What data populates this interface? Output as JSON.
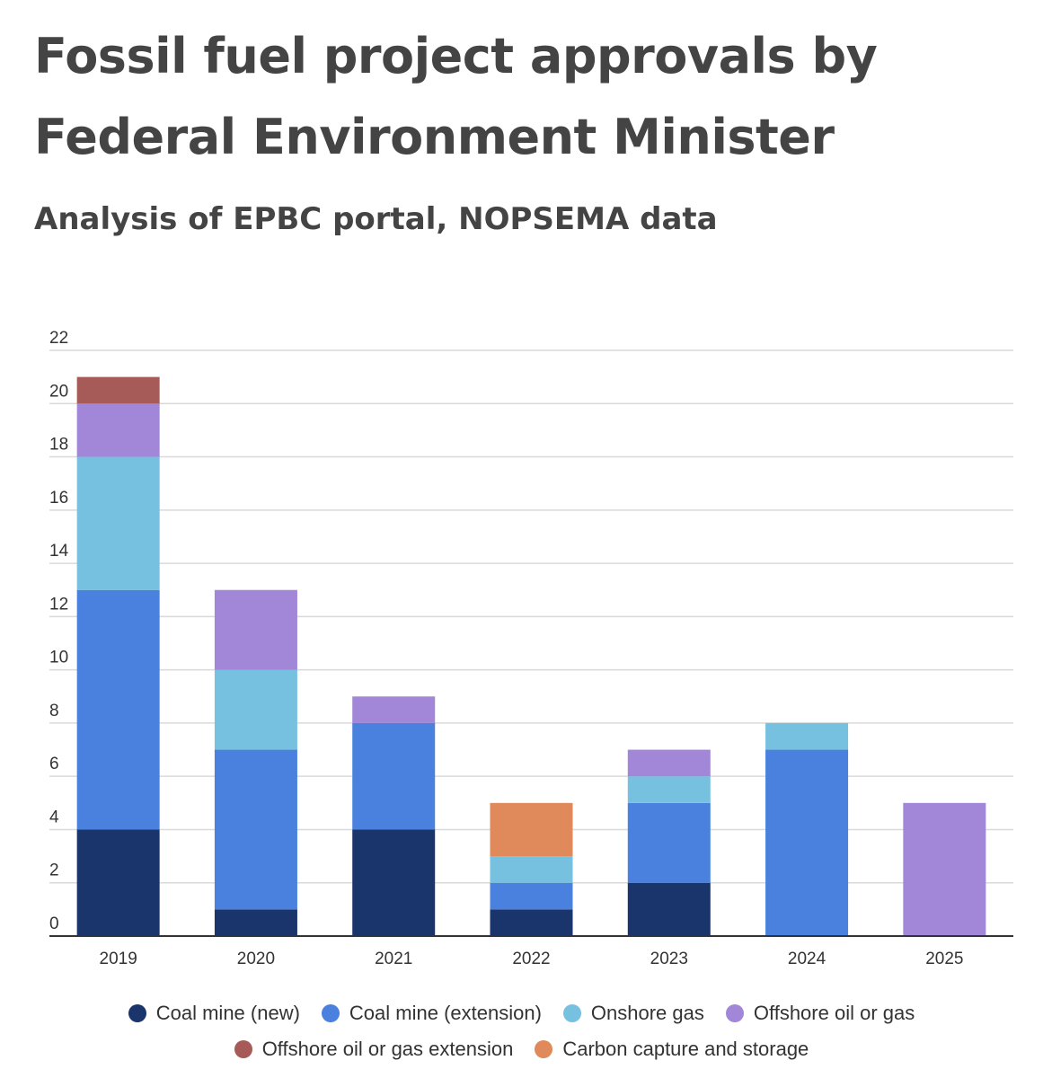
{
  "title": "Fossil fuel project approvals by Federal Environment Minister",
  "subtitle": "Analysis of EPBC portal, NOPSEMA data",
  "chart_data": {
    "type": "bar",
    "stacked": true,
    "categories": [
      "2019",
      "2020",
      "2021",
      "2022",
      "2023",
      "2024",
      "2025"
    ],
    "series": [
      {
        "name": "Coal mine (new)",
        "color": "#19356c",
        "values": [
          4,
          1,
          4,
          1,
          2,
          0,
          0
        ]
      },
      {
        "name": "Coal mine (extension)",
        "color": "#4a80de",
        "values": [
          9,
          6,
          4,
          1,
          3,
          7,
          0
        ]
      },
      {
        "name": "Onshore gas",
        "color": "#77c1e0",
        "values": [
          5,
          3,
          0,
          1,
          1,
          1,
          0
        ]
      },
      {
        "name": "Offshore oil or gas",
        "color": "#a286d8",
        "values": [
          2,
          3,
          1,
          0,
          1,
          0,
          5
        ]
      },
      {
        "name": "Offshore oil or gas extension",
        "color": "#a65b59",
        "values": [
          1,
          0,
          0,
          0,
          0,
          0,
          0
        ]
      },
      {
        "name": "Carbon capture and storage",
        "color": "#e0895a",
        "values": [
          0,
          0,
          0,
          2,
          0,
          0,
          0
        ]
      }
    ],
    "yticks": [
      0,
      2,
      4,
      6,
      8,
      10,
      12,
      14,
      16,
      18,
      20,
      22
    ],
    "ylim": [
      0,
      22
    ],
    "xlabel": "",
    "ylabel": "",
    "grid": true,
    "legend_position": "bottom"
  }
}
